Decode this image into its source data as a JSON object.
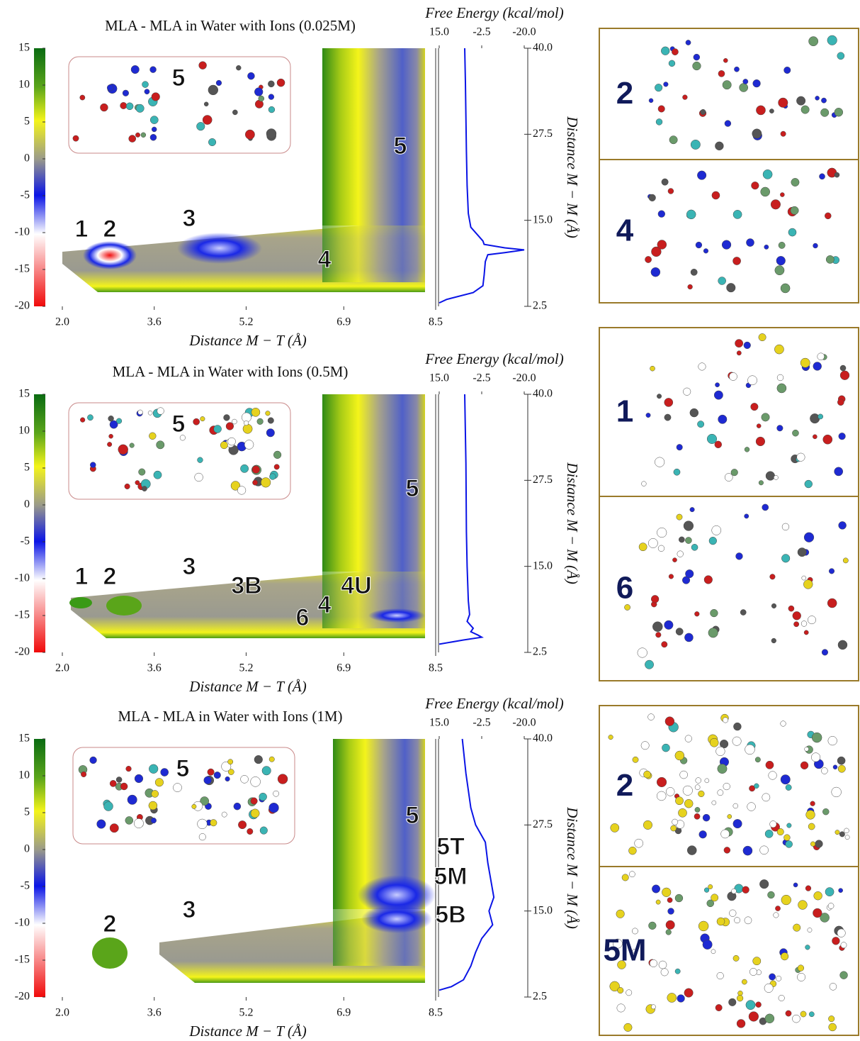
{
  "chart_data": [
    {
      "type": "heatmap",
      "title": "MLA - MLA in Water with Ions (0.025M)",
      "xlabel": "Distance M − T  (Å)",
      "y2label": "Distance M − M  (Å)",
      "toplabel": "Free Energy (kcal/mol)",
      "xlim": [
        2.0,
        8.5
      ],
      "xticks": [
        {
          "value": 2.0,
          "label": "2.0"
        },
        3.6,
        5.2,
        6.9,
        8.5
      ],
      "y2lim": [
        2.5,
        40.0
      ],
      "y2ticks": [
        {
          "value": 40.0,
          "label": "40.0"
        },
        27.5,
        {
          "value": 15.0,
          "label": "15.0"
        },
        2.5
      ],
      "toplim": [
        15.0,
        -20.0
      ],
      "topticks": [
        {
          "value": 15.0,
          "label": "15.0"
        },
        -2.5,
        {
          "value": -20.0,
          "label": "-20.0"
        }
      ],
      "colorbar": {
        "lim": [
          -20,
          15
        ],
        "ticks": [
          15,
          10,
          5,
          0,
          -5,
          -10,
          -15,
          -20
        ]
      },
      "profile": {
        "color": "#0a14e6",
        "y": [
          40,
          35,
          30,
          25,
          20,
          16,
          14,
          12,
          11.5,
          11,
          10.7,
          10.3,
          10,
          9,
          7,
          5.5,
          4.5,
          3.5,
          3
        ],
        "x": [
          4.5,
          4.2,
          4,
          3.8,
          3.5,
          3,
          2,
          -3,
          -3.5,
          -12,
          -20,
          -12,
          -5,
          -4,
          -3.5,
          -3,
          1,
          12,
          15
        ]
      },
      "inset_label": "5",
      "annotations": [
        {
          "text": "1",
          "color": "#101a5a"
        },
        {
          "text": "2",
          "color": "#101a5a"
        },
        {
          "text": "3",
          "color": "#101a5a"
        },
        {
          "text": "4",
          "color": "#101a5a"
        },
        {
          "text": "5",
          "color": "#f2d21a"
        }
      ]
    },
    {
      "type": "heatmap",
      "title": "MLA - MLA in Water with Ions (0.5M)",
      "xlabel": "Distance M − T  (Å)",
      "y2label": "Distance M − M  (Å)",
      "toplabel": "Free Energy (kcal/mol)",
      "xlim": [
        2.0,
        8.5
      ],
      "xticks": [
        {
          "value": 2.0,
          "label": "2.0"
        },
        3.6,
        5.2,
        6.9,
        8.5
      ],
      "y2lim": [
        2.5,
        40.0
      ],
      "y2ticks": [
        {
          "value": 40.0,
          "label": "40.0"
        },
        27.5,
        {
          "value": 15.0,
          "label": "15.0"
        },
        2.5
      ],
      "toplim": [
        15.0,
        -20.0
      ],
      "topticks": [
        {
          "value": 15.0,
          "label": "15.0"
        },
        -2.5,
        {
          "value": -20.0,
          "label": "-20.0"
        }
      ],
      "colorbar": {
        "lim": [
          -20,
          15
        ],
        "ticks": [
          15,
          10,
          5,
          0,
          -5,
          -10,
          -15,
          -20
        ]
      },
      "profile": {
        "color": "#0a14e6",
        "y": [
          40,
          30,
          20,
          15,
          10,
          8,
          7,
          6,
          5.5,
          5,
          4.7,
          4.3,
          3.7
        ],
        "x": [
          4.5,
          4,
          3.8,
          3.5,
          3,
          2.5,
          3.5,
          1,
          2,
          -1,
          -2.5,
          5,
          15
        ]
      },
      "inset_label": "5",
      "annotations": [
        {
          "text": "1",
          "color": "#101a5a"
        },
        {
          "text": "2",
          "color": "#101a5a"
        },
        {
          "text": "3",
          "color": "#101a5a"
        },
        {
          "text": "3B",
          "color": "#101a5a"
        },
        {
          "text": "4U",
          "color": "#101a5a"
        },
        {
          "text": "4",
          "color": "#101a5a"
        },
        {
          "text": "6",
          "color": "#101a5a"
        },
        {
          "text": "5",
          "color": "#f2d21a"
        }
      ]
    },
    {
      "type": "heatmap",
      "title": "MLA - MLA in Water with Ions (1M)",
      "xlabel": "Distance M − T  (Å)",
      "y2label": "Distance M − M  (Å)",
      "toplabel": "Free Energy (kcal/mol)",
      "xlim": [
        2.0,
        8.5
      ],
      "xticks": [
        {
          "value": 2.0,
          "label": "2.0"
        },
        3.6,
        5.2,
        6.9,
        8.5
      ],
      "y2lim": [
        2.5,
        40.0
      ],
      "y2ticks": [
        {
          "value": 40.0,
          "label": "40.0"
        },
        27.5,
        {
          "value": 15.0,
          "label": "15.0"
        },
        2.5
      ],
      "toplim": [
        15.0,
        -20.0
      ],
      "topticks": [
        {
          "value": 15.0,
          "label": "15.0"
        },
        -2.5,
        {
          "value": -20.0,
          "label": "-20.0"
        }
      ],
      "colorbar": {
        "lim": [
          -20,
          15
        ],
        "ticks": [
          15,
          10,
          5,
          0,
          -5,
          -10,
          -15,
          -20
        ]
      },
      "profile": {
        "color": "#0a14e6",
        "y": [
          40,
          35,
          30,
          27.5,
          25,
          22,
          20,
          17,
          15,
          13,
          11,
          9,
          7,
          5,
          4,
          3.5
        ],
        "x": [
          5.5,
          4,
          2,
          0,
          -4,
          -5,
          -6,
          -7.5,
          -5.5,
          -7,
          -2.5,
          0,
          2,
          5,
          10,
          15
        ]
      },
      "inset_label": "5",
      "annotations": [
        {
          "text": "2",
          "color": "#101a5a"
        },
        {
          "text": "3",
          "color": "#101a5a"
        },
        {
          "text": "5",
          "color": "#f2d21a"
        },
        {
          "text": "5T",
          "color": "#101a5a"
        },
        {
          "text": "5M",
          "color": "#101a5a"
        },
        {
          "text": "5B",
          "color": "#101a5a"
        }
      ]
    }
  ],
  "snapshots": [
    {
      "label": "2"
    },
    {
      "label": "4"
    },
    {
      "label": "1"
    },
    {
      "label": "6"
    },
    {
      "label": "2"
    },
    {
      "label": "5M"
    }
  ]
}
